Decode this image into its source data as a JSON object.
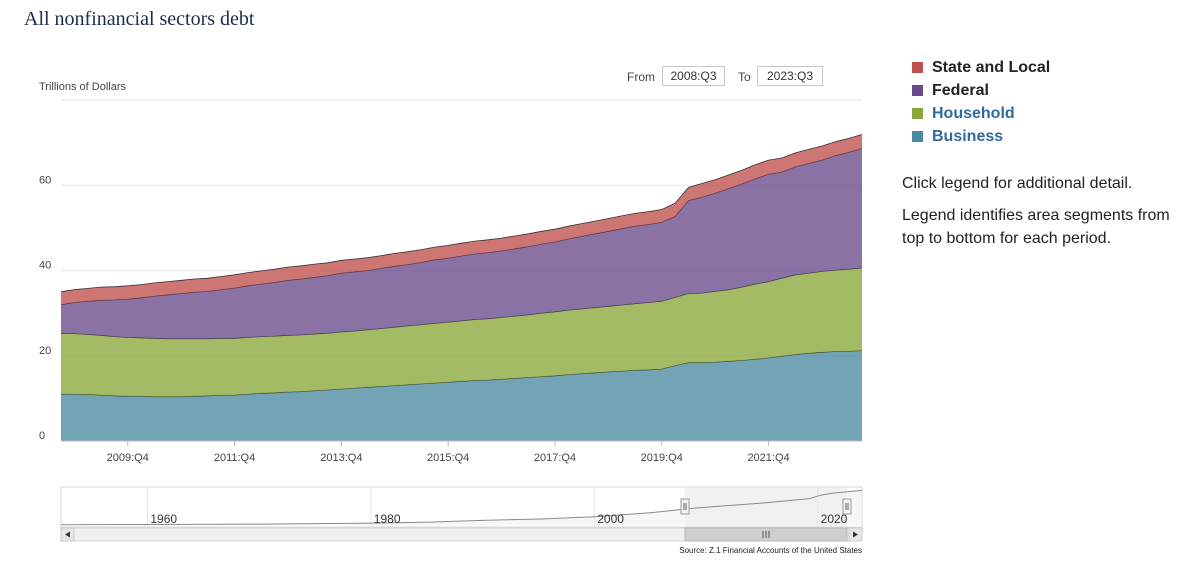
{
  "page": {
    "title": "All nonfinancial sectors debt"
  },
  "range": {
    "from_label": "From",
    "from_value": "2008:Q3",
    "to_label": "To",
    "to_value": "2023:Q3"
  },
  "legend": {
    "items": [
      {
        "label": "State and Local",
        "color": "#c0504d",
        "text_color": "#222222"
      },
      {
        "label": "Federal",
        "color": "#6a4a8a",
        "text_color": "#222222"
      },
      {
        "label": "Household",
        "color": "#8aa83a",
        "text_color": "#2f6aa0"
      },
      {
        "label": "Business",
        "color": "#4a8aa0",
        "text_color": "#2f6aa0"
      }
    ]
  },
  "notes": {
    "click_hint": "Click legend for additional detail.",
    "order_hint": "Legend identifies area segments from top to bottom for each period."
  },
  "navigator": {
    "year_labels": [
      "1960",
      "1980",
      "2000",
      "2020"
    ],
    "scroll_left_icon": "triangle-left-icon",
    "scroll_right_icon": "triangle-right-icon",
    "grip_icon": "grip-lines-icon"
  },
  "source": "Source: Z.1 Financial Accounts of the United States",
  "chart_data": {
    "type": "area",
    "stacked": true,
    "ylabel": "Trillions of Dollars",
    "ylim": [
      0,
      80
    ],
    "yticks": [
      0,
      20,
      40,
      60
    ],
    "grid": true,
    "x": [
      "2008:Q3",
      "2008:Q4",
      "2009:Q1",
      "2009:Q2",
      "2009:Q3",
      "2009:Q4",
      "2010:Q1",
      "2010:Q2",
      "2010:Q3",
      "2010:Q4",
      "2011:Q1",
      "2011:Q2",
      "2011:Q3",
      "2011:Q4",
      "2012:Q1",
      "2012:Q2",
      "2012:Q3",
      "2012:Q4",
      "2013:Q1",
      "2013:Q2",
      "2013:Q3",
      "2013:Q4",
      "2014:Q1",
      "2014:Q2",
      "2014:Q3",
      "2014:Q4",
      "2015:Q1",
      "2015:Q2",
      "2015:Q3",
      "2015:Q4",
      "2016:Q1",
      "2016:Q2",
      "2016:Q3",
      "2016:Q4",
      "2017:Q1",
      "2017:Q2",
      "2017:Q3",
      "2017:Q4",
      "2018:Q1",
      "2018:Q2",
      "2018:Q3",
      "2018:Q4",
      "2019:Q1",
      "2019:Q2",
      "2019:Q3",
      "2019:Q4",
      "2020:Q1",
      "2020:Q2",
      "2020:Q3",
      "2020:Q4",
      "2021:Q1",
      "2021:Q2",
      "2021:Q3",
      "2021:Q4",
      "2022:Q1",
      "2022:Q2",
      "2022:Q3",
      "2022:Q4",
      "2023:Q1",
      "2023:Q2",
      "2023:Q3"
    ],
    "xtick_labels": [
      "2009:Q4",
      "2011:Q4",
      "2013:Q4",
      "2015:Q4",
      "2017:Q4",
      "2019:Q4",
      "2021:Q4"
    ],
    "series": [
      {
        "name": "Business",
        "values": [
          11.0,
          11.0,
          10.9,
          10.8,
          10.6,
          10.5,
          10.5,
          10.4,
          10.4,
          10.4,
          10.5,
          10.6,
          10.7,
          10.8,
          11.0,
          11.2,
          11.3,
          11.5,
          11.6,
          11.8,
          12.0,
          12.2,
          12.4,
          12.6,
          12.8,
          13.0,
          13.2,
          13.4,
          13.6,
          13.8,
          14.0,
          14.2,
          14.3,
          14.5,
          14.7,
          14.9,
          15.1,
          15.3,
          15.6,
          15.8,
          16.0,
          16.2,
          16.4,
          16.6,
          16.7,
          16.9,
          17.7,
          18.4,
          18.4,
          18.5,
          18.7,
          18.9,
          19.2,
          19.5,
          19.9,
          20.3,
          20.6,
          20.8,
          21.0,
          21.1,
          21.2
        ]
      },
      {
        "name": "Household",
        "values": [
          14.3,
          14.2,
          14.1,
          14.0,
          13.9,
          13.8,
          13.7,
          13.7,
          13.6,
          13.6,
          13.5,
          13.4,
          13.4,
          13.3,
          13.3,
          13.3,
          13.3,
          13.3,
          13.3,
          13.3,
          13.3,
          13.4,
          13.4,
          13.5,
          13.6,
          13.7,
          13.8,
          13.9,
          14.0,
          14.1,
          14.2,
          14.3,
          14.4,
          14.5,
          14.6,
          14.7,
          14.9,
          15.0,
          15.1,
          15.2,
          15.3,
          15.4,
          15.5,
          15.6,
          15.8,
          15.9,
          16.0,
          16.2,
          16.3,
          16.6,
          16.8,
          17.2,
          17.6,
          17.9,
          18.3,
          18.7,
          18.8,
          19.0,
          19.1,
          19.2,
          19.4
        ]
      },
      {
        "name": "Federal",
        "values": [
          6.7,
          7.3,
          7.8,
          8.2,
          8.6,
          9.0,
          9.4,
          9.9,
          10.3,
          10.6,
          10.9,
          11.1,
          11.4,
          11.8,
          12.1,
          12.3,
          12.6,
          12.9,
          13.1,
          13.3,
          13.5,
          13.8,
          13.9,
          13.9,
          14.1,
          14.3,
          14.4,
          14.6,
          14.9,
          15.0,
          15.2,
          15.4,
          15.5,
          15.6,
          15.8,
          16.0,
          16.2,
          16.4,
          16.7,
          17.0,
          17.3,
          17.6,
          17.9,
          18.2,
          18.3,
          18.5,
          19.0,
          21.8,
          22.5,
          23.0,
          23.7,
          24.2,
          24.7,
          25.2,
          24.9,
          25.3,
          25.7,
          26.1,
          26.8,
          27.4,
          28.0
        ]
      },
      {
        "name": "State and Local",
        "values": [
          3.0,
          3.0,
          3.0,
          3.1,
          3.1,
          3.1,
          3.1,
          3.1,
          3.1,
          3.1,
          3.1,
          3.1,
          3.1,
          3.1,
          3.1,
          3.1,
          3.1,
          3.1,
          3.1,
          3.1,
          3.0,
          3.0,
          3.0,
          3.0,
          3.0,
          3.0,
          3.0,
          3.0,
          3.0,
          3.0,
          3.0,
          3.0,
          3.0,
          3.0,
          3.0,
          3.0,
          3.0,
          3.0,
          3.0,
          3.0,
          3.0,
          3.0,
          3.0,
          3.0,
          3.0,
          3.0,
          3.1,
          3.1,
          3.2,
          3.2,
          3.2,
          3.2,
          3.3,
          3.3,
          3.3,
          3.3,
          3.3,
          3.3,
          3.3,
          3.3,
          3.3
        ]
      }
    ],
    "navigator_total": {
      "x": [
        1952,
        1960,
        1970,
        1980,
        1985,
        1990,
        1995,
        2000,
        2005,
        2007,
        2008,
        2010,
        2015,
        2019,
        2020,
        2021,
        2022,
        2023.7
      ],
      "values": [
        0.6,
        1.0,
        1.8,
        4.0,
        6.0,
        10.0,
        12.5,
        17.5,
        26.0,
        31.0,
        34.0,
        37.5,
        46.0,
        55.0,
        62.0,
        66.0,
        68.5,
        72.0
      ]
    }
  }
}
